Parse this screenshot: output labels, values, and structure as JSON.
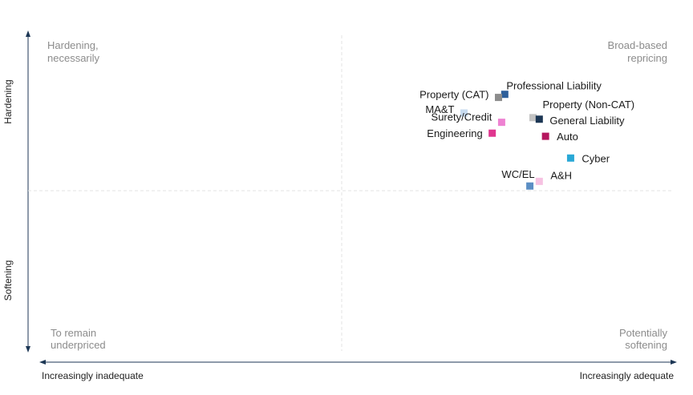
{
  "chart_data": {
    "type": "scatter",
    "title": "",
    "xlabel_left": "Increasingly inadequate",
    "xlabel_right": "Increasingly adequate",
    "ylabel_top": "Hardening",
    "ylabel_bottom": "Softening",
    "quadrants": {
      "top_left": [
        "Hardening,",
        "necessarily"
      ],
      "top_right": [
        "Broad-based",
        "repricing"
      ],
      "bottom_left": [
        "To remain",
        "underpriced"
      ],
      "bottom_right": [
        "Potentially",
        "softening"
      ]
    },
    "points": [
      {
        "label": "Professional Liability",
        "x": 0.52,
        "y": 0.62,
        "color": "#2e5f9a"
      },
      {
        "label": "Property (CAT)",
        "x": 0.5,
        "y": 0.6,
        "color": "#8c8c8c"
      },
      {
        "label": "MA&T",
        "x": 0.39,
        "y": 0.5,
        "color": "#c9dcf0"
      },
      {
        "label": "Surety/Credit",
        "x": 0.51,
        "y": 0.44,
        "color": "#ee82d2"
      },
      {
        "label": "Property (Non-CAT)",
        "x": 0.61,
        "y": 0.47,
        "color": "#c3c3c3"
      },
      {
        "label": "General Liability",
        "x": 0.63,
        "y": 0.46,
        "color": "#1c3654"
      },
      {
        "label": "Engineering",
        "x": 0.48,
        "y": 0.37,
        "color": "#e0368f"
      },
      {
        "label": "Auto",
        "x": 0.65,
        "y": 0.35,
        "color": "#b5175e"
      },
      {
        "label": "Cyber",
        "x": 0.73,
        "y": 0.21,
        "color": "#29a8d6"
      },
      {
        "label": "WC/EL",
        "x": 0.6,
        "y": 0.03,
        "color": "#5b8ec4"
      },
      {
        "label": "A&H",
        "x": 0.63,
        "y": 0.06,
        "color": "#f6c2e2"
      }
    ]
  }
}
